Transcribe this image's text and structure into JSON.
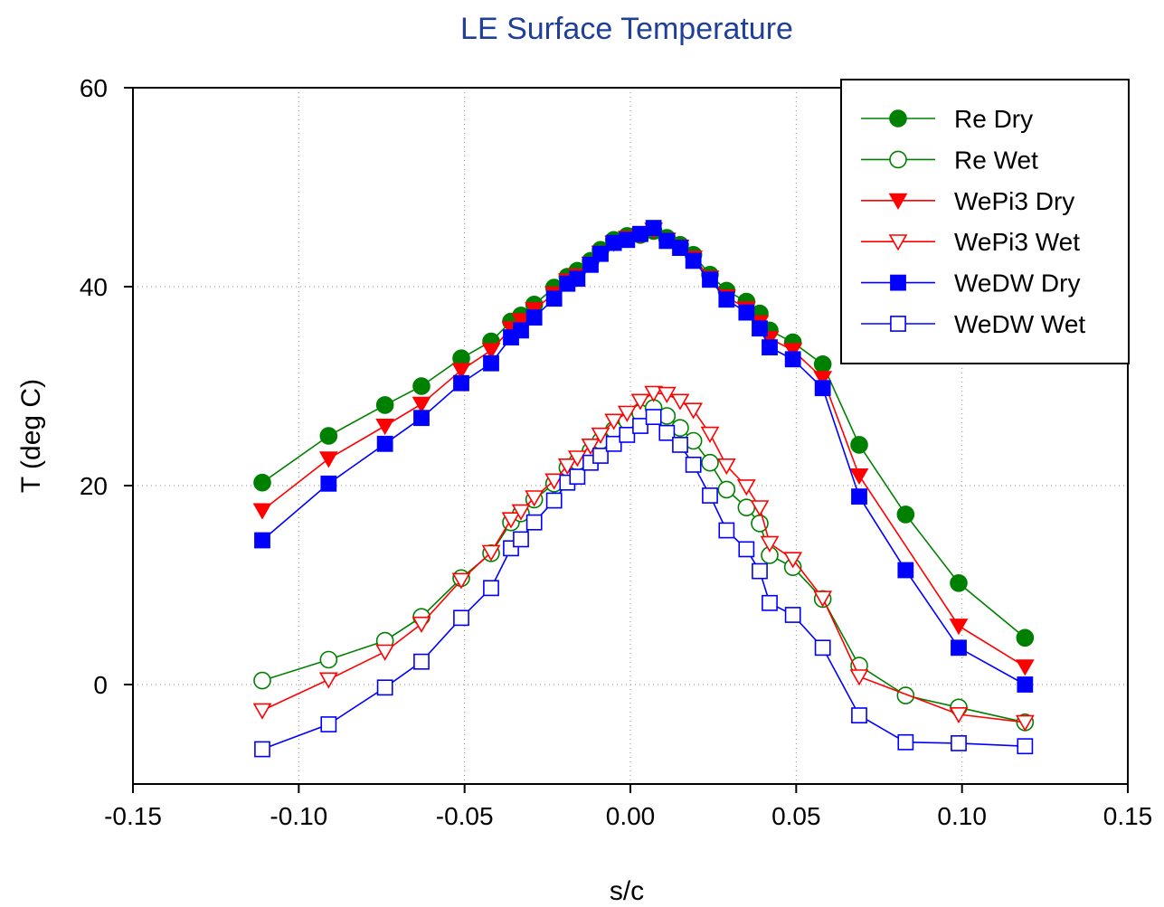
{
  "chart_data": {
    "type": "line",
    "title": "LE Surface Temperature",
    "xlabel": "s/c",
    "ylabel": "T (deg C)",
    "xlim": [
      -0.15,
      0.15
    ],
    "ylim": [
      -10,
      60
    ],
    "xticks": [
      -0.15,
      -0.1,
      -0.05,
      0.0,
      0.05,
      0.1,
      0.15
    ],
    "xtick_labels": [
      "-0.15",
      "-0.10",
      "-0.05",
      "0.00",
      "0.05",
      "0.10",
      "0.15"
    ],
    "yticks": [
      0,
      20,
      40,
      60
    ],
    "ytick_labels": [
      "0",
      "20",
      "40",
      "60"
    ],
    "grid": true,
    "legend_position": "top-right",
    "series": [
      {
        "name": "Re Dry",
        "color": "#008000",
        "marker": "circle",
        "filled": true,
        "x": [
          -0.111,
          -0.091,
          -0.074,
          -0.063,
          -0.051,
          -0.042,
          -0.036,
          -0.033,
          -0.029,
          -0.023,
          -0.019,
          -0.016,
          -0.012,
          -0.009,
          -0.005,
          -0.001,
          0.003,
          0.007,
          0.011,
          0.015,
          0.019,
          0.024,
          0.029,
          0.035,
          0.039,
          0.042,
          0.049,
          0.058,
          0.069,
          0.083,
          0.099,
          0.119
        ],
        "y": [
          20.3,
          25.0,
          28.1,
          30.0,
          32.8,
          34.5,
          36.5,
          37.1,
          38.2,
          39.9,
          41.0,
          41.6,
          42.6,
          43.7,
          44.7,
          45.1,
          45.2,
          45.6,
          44.9,
          44.2,
          43.2,
          41.2,
          39.6,
          38.5,
          37.3,
          35.6,
          34.4,
          32.2,
          24.1,
          17.1,
          10.2,
          4.7
        ]
      },
      {
        "name": "Re Wet",
        "color": "#008000",
        "marker": "circle",
        "filled": false,
        "x": [
          -0.111,
          -0.091,
          -0.074,
          -0.063,
          -0.051,
          -0.042,
          -0.036,
          -0.033,
          -0.029,
          -0.023,
          -0.019,
          -0.016,
          -0.012,
          -0.009,
          -0.005,
          -0.001,
          0.003,
          0.007,
          0.011,
          0.015,
          0.019,
          0.024,
          0.029,
          0.035,
          0.039,
          0.042,
          0.049,
          0.058,
          0.069,
          0.083,
          0.099,
          0.119
        ],
        "y": [
          0.4,
          2.5,
          4.4,
          6.8,
          10.7,
          13.2,
          16.3,
          17.2,
          18.6,
          20.2,
          21.8,
          22.4,
          23.5,
          24.5,
          25.6,
          26.5,
          27.3,
          27.8,
          27.0,
          25.8,
          24.5,
          22.3,
          19.6,
          17.8,
          16.2,
          13.0,
          11.8,
          8.6,
          1.9,
          -1.1,
          -2.3,
          -3.8
        ]
      },
      {
        "name": "WePi3 Dry",
        "color": "#ff0000",
        "marker": "triangle-down",
        "filled": true,
        "x": [
          -0.111,
          -0.091,
          -0.074,
          -0.063,
          -0.051,
          -0.042,
          -0.036,
          -0.033,
          -0.029,
          -0.023,
          -0.019,
          -0.016,
          -0.012,
          -0.009,
          -0.005,
          -0.001,
          0.003,
          0.007,
          0.011,
          0.015,
          0.019,
          0.024,
          0.029,
          0.035,
          0.039,
          0.042,
          0.049,
          0.058,
          0.069,
          0.099,
          0.119
        ],
        "y": [
          17.5,
          22.7,
          26.0,
          28.2,
          31.6,
          33.6,
          35.8,
          36.6,
          37.7,
          39.3,
          40.6,
          41.1,
          42.3,
          43.4,
          44.4,
          44.9,
          45.2,
          45.7,
          44.7,
          44.0,
          42.9,
          40.9,
          39.0,
          37.8,
          36.4,
          34.8,
          33.6,
          30.8,
          21.0,
          5.9,
          1.8
        ]
      },
      {
        "name": "WePi3 Wet",
        "color": "#ff0000",
        "marker": "triangle-down",
        "filled": false,
        "x": [
          -0.111,
          -0.091,
          -0.074,
          -0.063,
          -0.051,
          -0.042,
          -0.036,
          -0.033,
          -0.029,
          -0.023,
          -0.019,
          -0.016,
          -0.012,
          -0.009,
          -0.005,
          -0.001,
          0.003,
          0.007,
          0.011,
          0.015,
          0.019,
          0.024,
          0.029,
          0.035,
          0.039,
          0.042,
          0.049,
          0.058,
          0.069,
          0.099,
          0.119
        ],
        "y": [
          -2.6,
          0.5,
          3.3,
          6.1,
          10.5,
          13.3,
          16.6,
          17.4,
          18.8,
          20.5,
          22.0,
          22.8,
          24.0,
          25.1,
          26.5,
          27.3,
          28.5,
          29.3,
          29.2,
          28.5,
          27.6,
          25.2,
          22.0,
          19.9,
          17.8,
          14.2,
          12.6,
          8.7,
          0.8,
          -3.0,
          -3.8
        ]
      },
      {
        "name": "WeDW Dry",
        "color": "#0000ff",
        "marker": "square",
        "filled": true,
        "x": [
          -0.111,
          -0.091,
          -0.074,
          -0.063,
          -0.051,
          -0.042,
          -0.036,
          -0.033,
          -0.029,
          -0.023,
          -0.019,
          -0.016,
          -0.012,
          -0.009,
          -0.005,
          -0.001,
          0.003,
          0.007,
          0.011,
          0.015,
          0.019,
          0.024,
          0.029,
          0.035,
          0.039,
          0.042,
          0.049,
          0.058,
          0.069,
          0.083,
          0.099,
          0.119
        ],
        "y": [
          14.5,
          20.2,
          24.2,
          26.8,
          30.3,
          32.3,
          34.9,
          35.6,
          36.9,
          38.8,
          40.3,
          40.8,
          42.2,
          43.3,
          44.4,
          44.7,
          45.3,
          45.9,
          44.6,
          43.9,
          42.6,
          40.7,
          38.7,
          37.4,
          35.8,
          33.9,
          32.7,
          29.8,
          18.9,
          11.5,
          3.7,
          0.0
        ]
      },
      {
        "name": "WeDW Wet",
        "color": "#0000ff",
        "marker": "square",
        "filled": false,
        "x": [
          -0.111,
          -0.091,
          -0.074,
          -0.063,
          -0.051,
          -0.042,
          -0.036,
          -0.033,
          -0.029,
          -0.023,
          -0.019,
          -0.016,
          -0.012,
          -0.009,
          -0.005,
          -0.001,
          0.003,
          0.007,
          0.011,
          0.015,
          0.019,
          0.024,
          0.029,
          0.035,
          0.039,
          0.042,
          0.049,
          0.058,
          0.069,
          0.083,
          0.099,
          0.119
        ],
        "y": [
          -6.5,
          -4.0,
          -0.3,
          2.3,
          6.7,
          9.7,
          13.7,
          14.6,
          16.3,
          18.5,
          20.3,
          20.9,
          22.3,
          23.0,
          24.2,
          25.1,
          26.0,
          26.9,
          25.3,
          24.1,
          22.1,
          19.0,
          15.5,
          13.6,
          11.4,
          8.2,
          7.0,
          3.7,
          -3.1,
          -5.8,
          -5.9,
          -6.2
        ]
      }
    ]
  }
}
